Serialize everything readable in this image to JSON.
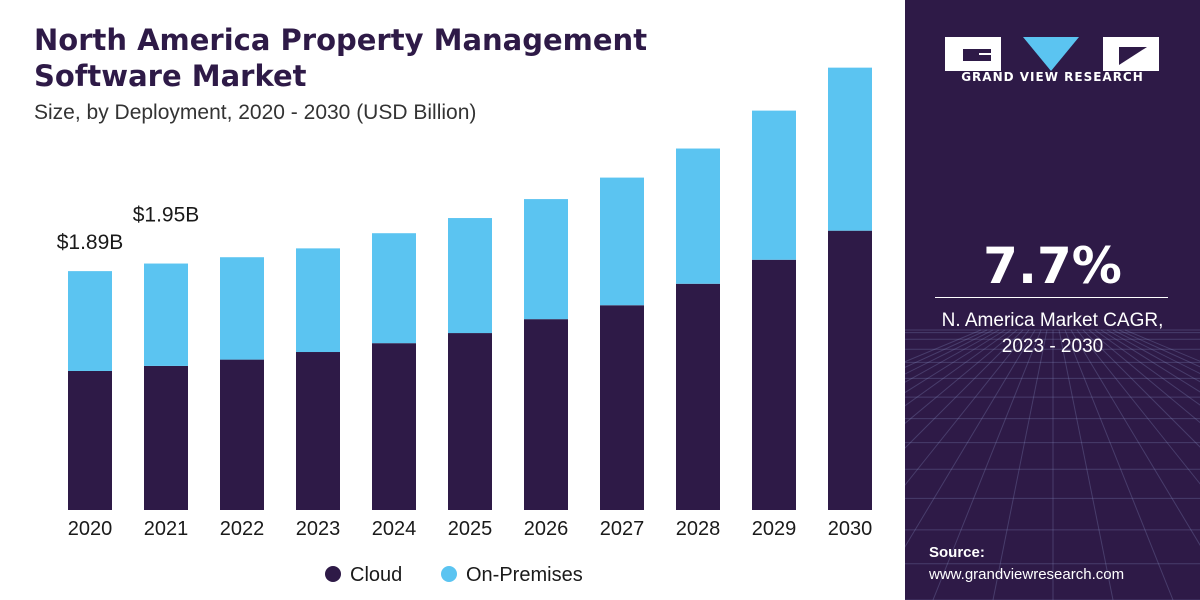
{
  "header": {
    "title_line1": "North America Property Management",
    "title_line2": "Software Market",
    "subtitle": "Size, by Deployment, 2020 - 2030 (USD Billion)"
  },
  "sidebar": {
    "brand": "GRAND VIEW RESEARCH",
    "cagr_value": "7.7%",
    "cagr_label_line1": "N. America Market CAGR,",
    "cagr_label_line2": "2023 - 2030",
    "source_label": "Source:",
    "source_url": "www.grandviewresearch.com",
    "logo_icon": "gvr-logo-icon"
  },
  "colors": {
    "cloud": "#2e1a47",
    "on_premises": "#5bc4f1",
    "sidebar_bg": "#2e1a47"
  },
  "chart_data": {
    "type": "bar",
    "stacked": true,
    "categories": [
      "2020",
      "2021",
      "2022",
      "2023",
      "2024",
      "2025",
      "2026",
      "2027",
      "2028",
      "2029",
      "2030"
    ],
    "series": [
      {
        "name": "Cloud",
        "values": [
          1.1,
          1.14,
          1.19,
          1.25,
          1.32,
          1.4,
          1.51,
          1.62,
          1.79,
          1.98,
          2.21
        ]
      },
      {
        "name": "On-Premises",
        "values": [
          0.79,
          0.81,
          0.81,
          0.82,
          0.87,
          0.91,
          0.95,
          1.01,
          1.07,
          1.18,
          1.29
        ]
      }
    ],
    "data_labels": [
      {
        "category": "2020",
        "text": "$1.89B"
      },
      {
        "category": "2021",
        "text": "$1.95B"
      }
    ],
    "legend": {
      "position": "bottom",
      "items": [
        "Cloud",
        "On-Premises"
      ]
    },
    "ylim": [
      0,
      3.6
    ],
    "grid": false,
    "title": "North America Property Management Software Market",
    "xlabel": "",
    "ylabel": ""
  }
}
